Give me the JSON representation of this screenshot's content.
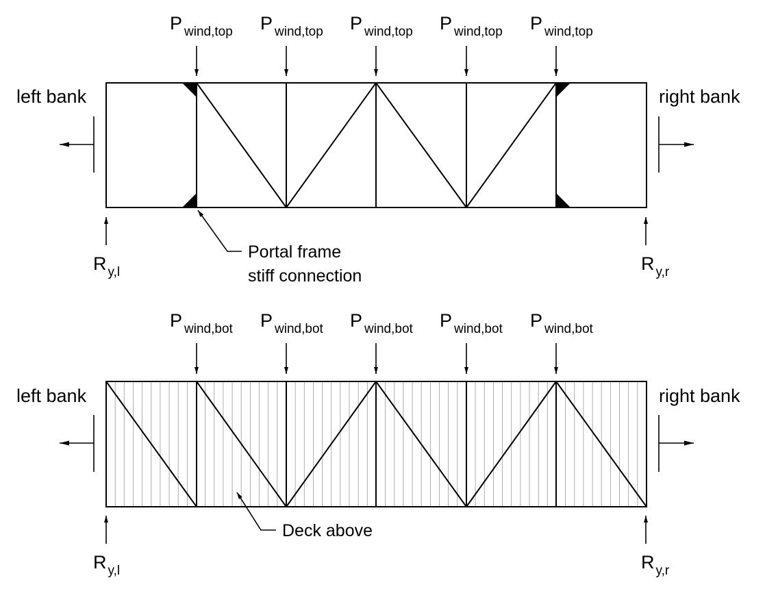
{
  "top_view": {
    "loads": [
      {
        "symbol": "P",
        "subscript": "wind,top"
      },
      {
        "symbol": "P",
        "subscript": "wind,top"
      },
      {
        "symbol": "P",
        "subscript": "wind,top"
      },
      {
        "symbol": "P",
        "subscript": "wind,top"
      },
      {
        "symbol": "P",
        "subscript": "wind,top"
      }
    ],
    "left_label": "left bank",
    "right_label": "right bank",
    "reaction_left": {
      "symbol": "R",
      "subscript": "y,l"
    },
    "reaction_right": {
      "symbol": "R",
      "subscript": "y,r"
    },
    "callout_line1": "Portal frame",
    "callout_line2": "stiff connection"
  },
  "bottom_view": {
    "loads": [
      {
        "symbol": "P",
        "subscript": "wind,bot"
      },
      {
        "symbol": "P",
        "subscript": "wind,bot"
      },
      {
        "symbol": "P",
        "subscript": "wind,bot"
      },
      {
        "symbol": "P",
        "subscript": "wind,bot"
      },
      {
        "symbol": "P",
        "subscript": "wind,bot"
      }
    ],
    "left_label": "left bank",
    "right_label": "right bank",
    "reaction_left": {
      "symbol": "R",
      "subscript": "y,l"
    },
    "reaction_right": {
      "symbol": "R",
      "subscript": "y,r"
    },
    "callout": "Deck above"
  }
}
